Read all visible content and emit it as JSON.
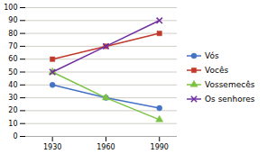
{
  "chart_data": {
    "type": "line",
    "x": [
      1930,
      1960,
      1990
    ],
    "series": [
      {
        "name": "Vós",
        "values": [
          40,
          30,
          22
        ],
        "color": "#4472C4",
        "marker": "circle"
      },
      {
        "name": "Vocês",
        "values": [
          60,
          70,
          80
        ],
        "color": "#C0392B",
        "marker": "square"
      },
      {
        "name": "Vossemecês",
        "values": [
          50,
          30,
          13
        ],
        "color": "#7DC243",
        "marker": "triangle"
      },
      {
        "name": "Os senhores",
        "values": [
          50,
          70,
          90
        ],
        "color": "#7030A0",
        "marker": "times"
      }
    ],
    "xlim": [
      1915,
      2000
    ],
    "ylim": [
      0,
      100
    ],
    "xticks": [
      1930,
      1960,
      1990
    ],
    "yticks": [
      0,
      10,
      20,
      30,
      40,
      50,
      60,
      70,
      80,
      90,
      100
    ],
    "grid": true,
    "legend": "right"
  }
}
